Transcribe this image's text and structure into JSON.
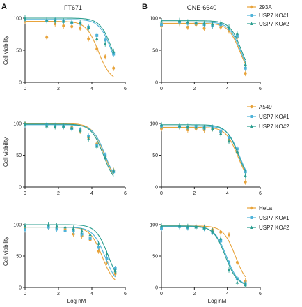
{
  "colors": {
    "293A": "#e8a33a",
    "KO1": "#4fb3d9",
    "KO2": "#2a9d8f"
  },
  "panels": [
    {
      "letter": "A",
      "title": "FT671"
    },
    {
      "letter": "B",
      "title": "GNE-6640"
    }
  ],
  "legends": [
    [
      "293A",
      "USP7 KO#1",
      "USP7 KO#2"
    ],
    [
      "A549",
      "USP7 KO#1",
      "USP7 KO#2"
    ],
    [
      "HeLa",
      "USP7 KO#1",
      "USP7 KO#2"
    ]
  ],
  "ylabel": "Cell viability",
  "xlabel": "Log nM",
  "chart_data": [
    {
      "type": "scatter",
      "title": "FT671",
      "row": 0,
      "col": 0,
      "xlim": [
        0,
        6
      ],
      "ylim": [
        0,
        100
      ],
      "series": [
        {
          "name": "293A",
          "x": [
            0,
            1.3,
            1.8,
            2.3,
            2.8,
            3.3,
            3.8,
            4.3,
            4.8,
            5.3
          ],
          "y": [
            95,
            70,
            91,
            88,
            87,
            84,
            68,
            52,
            40,
            22
          ]
        },
        {
          "name": "USP7 KO#1",
          "x": [
            0,
            1.3,
            1.8,
            2.3,
            2.8,
            3.3,
            3.8,
            4.3,
            4.8,
            5.3
          ],
          "y": [
            98,
            96,
            97,
            95,
            93,
            92,
            86,
            73,
            66,
            44
          ]
        },
        {
          "name": "USP7 KO#2",
          "x": [
            0,
            1.3,
            1.8,
            2.3,
            2.8,
            3.3,
            3.8,
            4.3,
            4.8,
            5.3
          ],
          "y": [
            100,
            97,
            96,
            95,
            94,
            93,
            85,
            68,
            60,
            48
          ]
        }
      ]
    },
    {
      "type": "scatter",
      "title": "GNE-6640",
      "row": 0,
      "col": 1,
      "xlim": [
        0,
        6
      ],
      "ylim": [
        0,
        100
      ],
      "series": [
        {
          "name": "293A",
          "x": [
            0,
            1.1,
            1.6,
            2.1,
            2.6,
            3.1,
            3.6,
            4.1,
            4.6,
            5.1
          ],
          "y": [
            88,
            92,
            86,
            90,
            84,
            88,
            86,
            80,
            70,
            14
          ]
        },
        {
          "name": "USP7 KO#1",
          "x": [
            0,
            1.1,
            1.6,
            2.1,
            2.6,
            3.1,
            3.6,
            4.1,
            4.6,
            5.1
          ],
          "y": [
            90,
            94,
            92,
            92,
            90,
            88,
            90,
            84,
            72,
            22
          ]
        },
        {
          "name": "USP7 KO#2",
          "x": [
            0,
            1.1,
            1.6,
            2.1,
            2.6,
            3.1,
            3.6,
            4.1,
            4.6,
            5.1
          ],
          "y": [
            95,
            96,
            94,
            93,
            92,
            91,
            92,
            86,
            76,
            28
          ]
        }
      ]
    },
    {
      "type": "scatter",
      "row": 1,
      "col": 0,
      "xlim": [
        0,
        6
      ],
      "ylim": [
        0,
        100
      ],
      "series": [
        {
          "name": "A549",
          "x": [
            0,
            1.3,
            1.8,
            2.3,
            2.8,
            3.3,
            3.8,
            4.3,
            4.8,
            5.3
          ],
          "y": [
            100,
            97,
            96,
            95,
            94,
            88,
            78,
            68,
            48,
            26
          ]
        },
        {
          "name": "USP7 KO#1",
          "x": [
            0,
            1.3,
            1.8,
            2.3,
            2.8,
            3.3,
            3.8,
            4.3,
            4.8,
            5.3
          ],
          "y": [
            98,
            98,
            97,
            95,
            92,
            90,
            80,
            66,
            50,
            24
          ]
        },
        {
          "name": "USP7 KO#2",
          "x": [
            0,
            1.3,
            1.8,
            2.3,
            2.8,
            3.3,
            3.8,
            4.3,
            4.8,
            5.3
          ],
          "y": [
            99,
            96,
            95,
            96,
            93,
            89,
            76,
            64,
            46,
            25
          ]
        }
      ]
    },
    {
      "type": "scatter",
      "row": 1,
      "col": 1,
      "xlim": [
        0,
        6
      ],
      "ylim": [
        0,
        100
      ],
      "series": [
        {
          "name": "A549",
          "x": [
            0,
            1.1,
            1.6,
            2.1,
            2.6,
            3.1,
            3.6,
            4.1,
            4.6,
            5.1
          ],
          "y": [
            92,
            94,
            90,
            92,
            90,
            92,
            86,
            74,
            54,
            8
          ]
        },
        {
          "name": "USP7 KO#1",
          "x": [
            0,
            1.1,
            1.6,
            2.1,
            2.6,
            3.1,
            3.6,
            4.1,
            4.6,
            5.1
          ],
          "y": [
            96,
            95,
            94,
            95,
            93,
            94,
            88,
            78,
            60,
            24
          ]
        },
        {
          "name": "USP7 KO#2",
          "x": [
            0,
            1.1,
            1.6,
            2.1,
            2.6,
            3.1,
            3.6,
            4.1,
            4.6,
            5.1
          ],
          "y": [
            98,
            96,
            95,
            94,
            94,
            92,
            84,
            72,
            56,
            18
          ]
        }
      ]
    },
    {
      "type": "scatter",
      "row": 2,
      "col": 0,
      "xlim": [
        0,
        6
      ],
      "ylim": [
        0,
        100
      ],
      "series": [
        {
          "name": "HeLa",
          "x": [
            0,
            1.4,
            1.9,
            2.4,
            2.9,
            3.4,
            3.9,
            4.4,
            4.9,
            5.4
          ],
          "y": [
            96,
            96,
            95,
            92,
            85,
            82,
            76,
            58,
            40,
            22
          ]
        },
        {
          "name": "USP7 KO#1",
          "x": [
            0,
            1.4,
            1.9,
            2.4,
            2.9,
            3.4,
            3.9,
            4.4,
            4.9,
            5.4
          ],
          "y": [
            92,
            96,
            93,
            90,
            90,
            85,
            78,
            64,
            46,
            30
          ]
        },
        {
          "name": "USP7 KO#2",
          "x": [
            0,
            1.4,
            1.9,
            2.4,
            2.9,
            3.4,
            3.9,
            4.4,
            4.9,
            5.4
          ],
          "y": [
            98,
            100,
            98,
            96,
            94,
            90,
            84,
            70,
            54,
            26
          ]
        }
      ]
    },
    {
      "type": "scatter",
      "row": 2,
      "col": 1,
      "xlim": [
        0,
        6
      ],
      "ylim": [
        0,
        100
      ],
      "series": [
        {
          "name": "HeLa",
          "x": [
            0,
            1.1,
            1.6,
            2.1,
            2.6,
            3.1,
            3.6,
            4.1,
            4.6,
            5.1
          ],
          "y": [
            96,
            98,
            96,
            97,
            96,
            92,
            88,
            84,
            40,
            10
          ]
        },
        {
          "name": "USP7 KO#1",
          "x": [
            0,
            1.1,
            1.6,
            2.1,
            2.6,
            3.1,
            3.6,
            4.1,
            4.6,
            5.1
          ],
          "y": [
            94,
            97,
            95,
            96,
            94,
            88,
            74,
            40,
            14,
            6
          ]
        },
        {
          "name": "USP7 KO#2",
          "x": [
            0,
            1.1,
            1.6,
            2.1,
            2.6,
            3.1,
            3.6,
            4.1,
            4.6,
            5.1
          ],
          "y": [
            98,
            98,
            97,
            96,
            95,
            90,
            78,
            28,
            8,
            4
          ]
        }
      ]
    }
  ]
}
